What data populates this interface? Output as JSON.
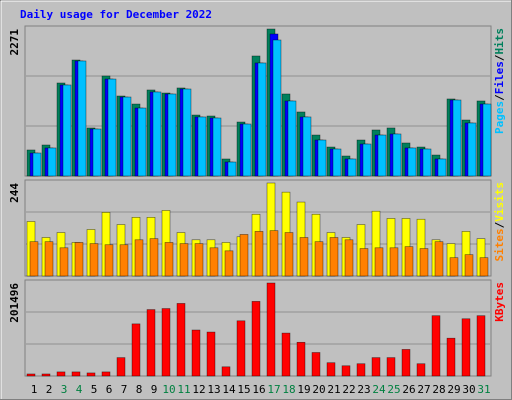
{
  "title": "Daily usage for December 2022",
  "legend_separator": "/",
  "categories": [
    "1",
    "2",
    "3",
    "4",
    "5",
    "6",
    "7",
    "8",
    "9",
    "10",
    "11",
    "12",
    "13",
    "14",
    "15",
    "16",
    "17",
    "18",
    "19",
    "20",
    "21",
    "22",
    "23",
    "24",
    "25",
    "26",
    "27",
    "28",
    "29",
    "30",
    "31"
  ],
  "category_colors": [
    "#000000",
    "#000000",
    "#008040",
    "#008040",
    "#000000",
    "#000000",
    "#000000",
    "#000000",
    "#000000",
    "#008040",
    "#008040",
    "#000000",
    "#000000",
    "#000000",
    "#000000",
    "#000000",
    "#008040",
    "#008040",
    "#000000",
    "#000000",
    "#000000",
    "#000000",
    "#000000",
    "#008040",
    "#008040",
    "#000000",
    "#000000",
    "#000000",
    "#000000",
    "#000000",
    "#008040"
  ],
  "chart_data": [
    {
      "type": "bar",
      "ylim": [
        0,
        2271
      ],
      "yticks": [
        2271
      ],
      "series": [
        {
          "name": "Hits",
          "color": "#00805c",
          "values": [
            402,
            479,
            1437,
            1792,
            742,
            1545,
            1236,
            1112,
            1329,
            1282,
            1360,
            942,
            927,
            263,
            834,
            1854,
            2271,
            1267,
            989,
            633,
            448,
            309,
            556,
            711,
            742,
            510,
            448,
            324,
            1190,
            865,
            1159
          ]
        },
        {
          "name": "Files",
          "color": "#0000ff",
          "values": [
            355,
            433,
            1406,
            1777,
            726,
            1498,
            1220,
            1050,
            1298,
            1267,
            1344,
            912,
            896,
            216,
            803,
            1746,
            2194,
            1159,
            912,
            556,
            417,
            263,
            494,
            633,
            649,
            433,
            417,
            263,
            1174,
            819,
            1112
          ]
        },
        {
          "name": "Pages",
          "color": "#00c0ff",
          "values": [
            355,
            433,
            1406,
            1777,
            726,
            1498,
            1220,
            1050,
            1298,
            1267,
            1344,
            912,
            896,
            216,
            803,
            1746,
            2101,
            1159,
            912,
            556,
            417,
            263,
            494,
            633,
            649,
            433,
            417,
            263,
            1174,
            819,
            1112
          ]
        }
      ]
    },
    {
      "type": "bar",
      "ylim": [
        0,
        244
      ],
      "yticks": [
        244
      ],
      "series": [
        {
          "name": "Visits",
          "color": "#ffff00",
          "values": [
            143,
            101,
            114,
            88,
            122,
            167,
            135,
            154,
            154,
            172,
            114,
            95,
            95,
            88,
            103,
            162,
            244,
            220,
            194,
            162,
            114,
            101,
            135,
            170,
            151,
            151,
            149,
            95,
            85,
            117,
            98
          ]
        },
        {
          "name": "Sites",
          "color": "#ff8000",
          "values": [
            90,
            90,
            74,
            88,
            85,
            82,
            82,
            95,
            98,
            88,
            85,
            85,
            74,
            66,
            109,
            117,
            119,
            114,
            101,
            90,
            101,
            95,
            72,
            74,
            74,
            77,
            72,
            90,
            48,
            56,
            48
          ]
        }
      ]
    },
    {
      "type": "bar",
      "ylim": [
        0,
        201496
      ],
      "yticks": [
        201496
      ],
      "series": [
        {
          "name": "KBytes",
          "color": "#ff0000",
          "values": [
            4428,
            4428,
            8857,
            8857,
            6643,
            8857,
            39857,
            112928,
            143928,
            146142,
            157213,
            99641,
            95213,
            19928,
            119570,
            161642,
            201496,
            92999,
            73071,
            50928,
            28785,
            22143,
            26571,
            39857,
            39857,
            57571,
            26571,
            130642,
            81928,
            124000,
            130642
          ]
        }
      ]
    }
  ]
}
